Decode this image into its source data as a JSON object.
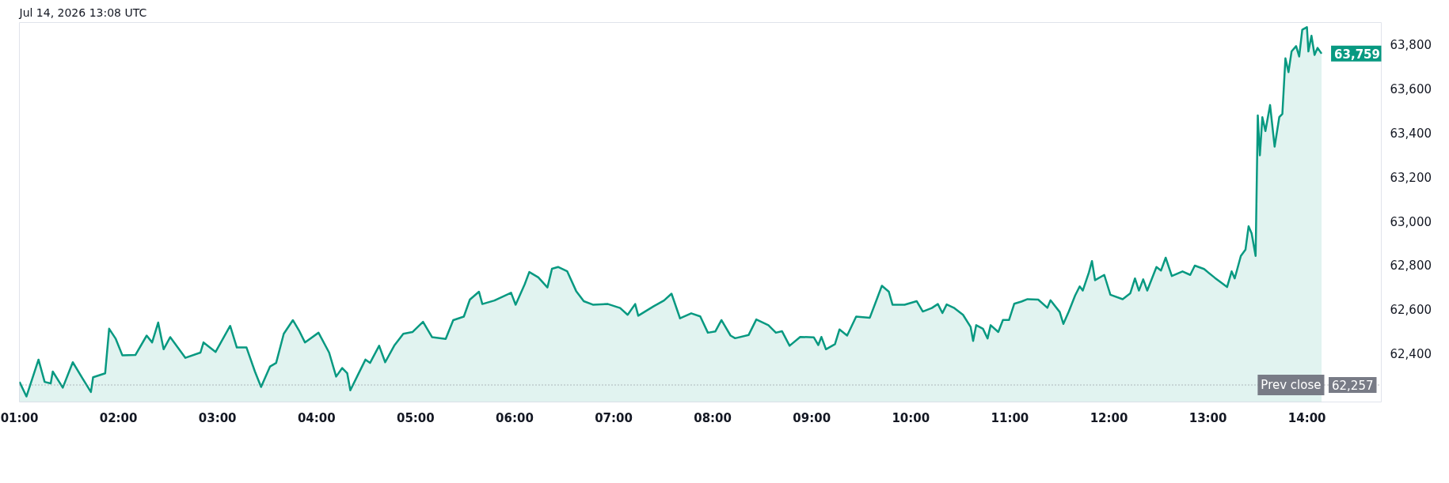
{
  "chart_data": {
    "type": "area",
    "annotations": [
      "Jul 14, 2026 13:08 UTC",
      {
        "text": "63,759",
        "x": 14.147,
        "y": 63759
      },
      {
        "text": "62,257",
        "x": 14.75,
        "y": 62257
      }
    ],
    "x": [
      1.001,
      1.071,
      1.193,
      1.255,
      1.316,
      1.337,
      1.438,
      1.539,
      1.637,
      1.722,
      1.744,
      1.866,
      1.906,
      1.973,
      2.04,
      2.171,
      2.285,
      2.34,
      2.401,
      2.456,
      2.523,
      2.676,
      2.828,
      2.859,
      2.981,
      3.128,
      3.195,
      3.293,
      3.378,
      3.44,
      3.531,
      3.592,
      3.669,
      3.761,
      3.822,
      3.883,
      4.02,
      4.127,
      4.198,
      4.259,
      4.31,
      4.341,
      4.418,
      4.494,
      4.54,
      4.632,
      4.693,
      4.784,
      4.876,
      4.968,
      5.075,
      5.166,
      5.304,
      5.38,
      5.487,
      5.548,
      5.64,
      5.674,
      5.796,
      5.964,
      6.01,
      6.102,
      6.148,
      6.239,
      6.331,
      6.377,
      6.438,
      6.53,
      6.621,
      6.698,
      6.79,
      6.942,
      7.065,
      7.141,
      7.217,
      7.248,
      7.401,
      7.508,
      7.584,
      7.67,
      7.783,
      7.874,
      7.951,
      8.027,
      8.088,
      8.18,
      8.226,
      8.363,
      8.44,
      8.562,
      8.638,
      8.699,
      8.776,
      8.883,
      9.02,
      9.066,
      9.097,
      9.143,
      9.234,
      9.28,
      9.357,
      9.448,
      9.586,
      9.662,
      9.708,
      9.778,
      9.815,
      9.937,
      10.059,
      10.121,
      10.212,
      10.273,
      10.319,
      10.362,
      10.434,
      10.527,
      10.604,
      10.629,
      10.66,
      10.728,
      10.775,
      10.806,
      10.883,
      10.93,
      10.992,
      11.044,
      11.116,
      11.178,
      11.286,
      11.379,
      11.41,
      11.503,
      11.54,
      11.596,
      11.658,
      11.705,
      11.736,
      11.798,
      11.829,
      11.86,
      11.953,
      12.015,
      12.139,
      12.216,
      12.263,
      12.303,
      12.346,
      12.387,
      12.48,
      12.526,
      12.573,
      12.635,
      12.743,
      12.821,
      12.867,
      12.96,
      13.069,
      13.193,
      13.239,
      13.27,
      13.332,
      13.379,
      13.41,
      13.441,
      13.481,
      13.503,
      13.524,
      13.549,
      13.58,
      13.627,
      13.673,
      13.72,
      13.751,
      13.782,
      13.813,
      13.844,
      13.89,
      13.921,
      13.952,
      13.999,
      14.014,
      14.045,
      14.076,
      14.107,
      14.147
    ],
    "series": [
      {
        "color": "#089981",
        "values": [
          62271,
          62205,
          62372,
          62271,
          62264,
          62318,
          62245,
          62360,
          62287,
          62225,
          62292,
          62310,
          62512,
          62466,
          62391,
          62393,
          62481,
          62450,
          62540,
          62419,
          62474,
          62380,
          62404,
          62450,
          62407,
          62525,
          62427,
          62427,
          62318,
          62248,
          62341,
          62357,
          62489,
          62551,
          62505,
          62450,
          62494,
          62404,
          62295,
          62334,
          62310,
          62233,
          62303,
          62372,
          62357,
          62435,
          62360,
          62435,
          62489,
          62497,
          62543,
          62474,
          62466,
          62551,
          62567,
          62644,
          62680,
          62624,
          62640,
          62675,
          62621,
          62714,
          62769,
          62745,
          62699,
          62784,
          62792,
          62773,
          62683,
          62637,
          62621,
          62624,
          62606,
          62575,
          62624,
          62571,
          62613,
          62640,
          62671,
          62559,
          62582,
          62568,
          62494,
          62500,
          62551,
          62481,
          62469,
          62484,
          62554,
          62528,
          62494,
          62501,
          62435,
          62475,
          62473,
          62438,
          62475,
          62419,
          62442,
          62509,
          62481,
          62567,
          62562,
          62652,
          62707,
          62680,
          62621,
          62621,
          62637,
          62590,
          62606,
          62624,
          62583,
          62622,
          62607,
          62575,
          62520,
          62457,
          62528,
          62512,
          62468,
          62528,
          62497,
          62552,
          62552,
          62625,
          62635,
          62646,
          62644,
          62607,
          62641,
          62588,
          62534,
          62591,
          62662,
          62704,
          62685,
          62767,
          62819,
          62732,
          62756,
          62666,
          62646,
          62673,
          62740,
          62685,
          62736,
          62685,
          62792,
          62776,
          62834,
          62751,
          62772,
          62756,
          62798,
          62783,
          62743,
          62701,
          62772,
          62740,
          62842,
          62871,
          62976,
          62944,
          62842,
          63479,
          63298,
          63471,
          63408,
          63526,
          63337,
          63471,
          63486,
          63738,
          63675,
          63769,
          63793,
          63746,
          63867,
          63879,
          63769,
          63840,
          63753,
          63785,
          63759
        ]
      }
    ],
    "xlim": [
      1.0,
      14.75
    ],
    "ylim": [
      62180,
      63900
    ],
    "xticks": [
      {
        "value": 1,
        "label": "01:00"
      },
      {
        "value": 2,
        "label": "02:00"
      },
      {
        "value": 3,
        "label": "03:00"
      },
      {
        "value": 4,
        "label": "04:00"
      },
      {
        "value": 5,
        "label": "05:00"
      },
      {
        "value": 6,
        "label": "06:00"
      },
      {
        "value": 7,
        "label": "07:00"
      },
      {
        "value": 8,
        "label": "08:00"
      },
      {
        "value": 9,
        "label": "09:00"
      },
      {
        "value": 10,
        "label": "10:00"
      },
      {
        "value": 11,
        "label": "11:00"
      },
      {
        "value": 12,
        "label": "12:00"
      },
      {
        "value": 13,
        "label": "13:00"
      },
      {
        "value": 14,
        "label": "14:00"
      }
    ],
    "yticks": [
      {
        "value": 62400,
        "label": "62,400"
      },
      {
        "value": 62600,
        "label": "62,600"
      },
      {
        "value": 62800,
        "label": "62,800"
      },
      {
        "value": 63000,
        "label": "63,000"
      },
      {
        "value": 63200,
        "label": "63,200"
      },
      {
        "value": 63400,
        "label": "63,400"
      },
      {
        "value": 63600,
        "label": "63,600"
      },
      {
        "value": 63800,
        "label": "63,800"
      }
    ],
    "ref_lines": [
      {
        "axis": "y",
        "value": 62257,
        "label": "Prev close",
        "color": "#787b86",
        "line_style": "dotted"
      }
    ]
  }
}
